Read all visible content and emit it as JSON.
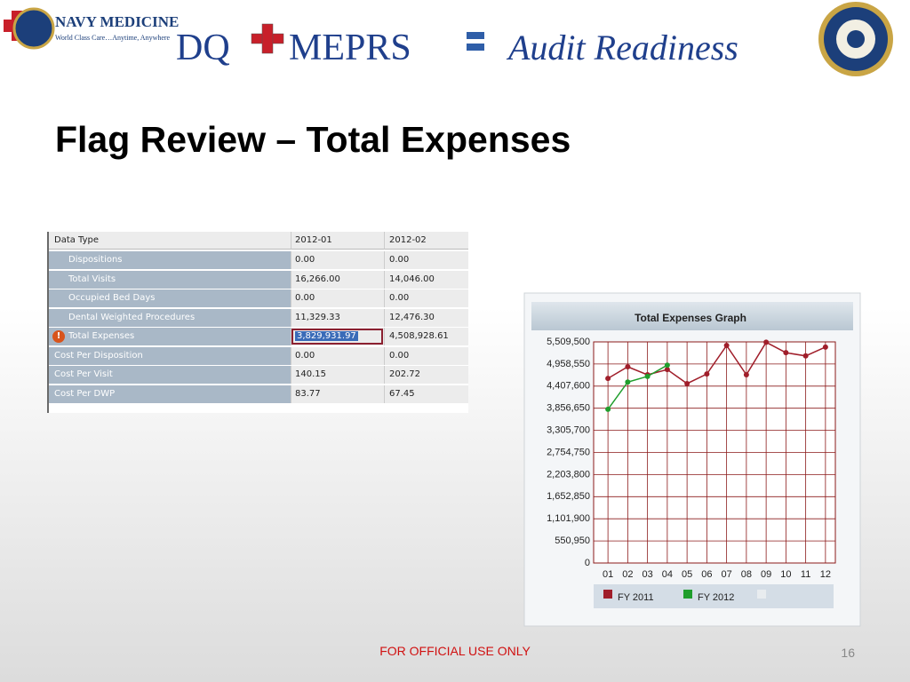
{
  "header": {
    "logo_title": "NAVY MEDICINE",
    "logo_tagline": "World Class Care…Anytime, Anywhere",
    "part1": "DQ",
    "part2": "MEPRS",
    "part3": "Audit Readiness"
  },
  "title": "Flag Review – Total Expenses",
  "table": {
    "columns": [
      "Data Type",
      "2012-01",
      "2012-02"
    ],
    "rows": [
      [
        "Dispositions",
        "0.00",
        "0.00"
      ],
      [
        "Total Visits",
        "16,266.00",
        "14,046.00"
      ],
      [
        "Occupied Bed Days",
        "0.00",
        "0.00"
      ],
      [
        "Dental Weighted Procedures",
        "11,329.33",
        "12,476.30"
      ],
      [
        "Total Expenses",
        "3,829,931.97",
        "4,508,928.61"
      ],
      [
        "Cost Per Disposition",
        "0.00",
        "0.00"
      ],
      [
        "Cost Per Visit",
        "140.15",
        "202.72"
      ],
      [
        "Cost Per DWP",
        "83.77",
        "67.45"
      ]
    ]
  },
  "chart_data": {
    "type": "line",
    "title": "Total Expenses Graph",
    "categories": [
      "01",
      "02",
      "03",
      "04",
      "05",
      "06",
      "07",
      "08",
      "09",
      "10",
      "11",
      "12"
    ],
    "series": [
      {
        "name": "FY 2011",
        "color": "#a01e2a",
        "values": [
          4600000,
          4890000,
          4690000,
          4820000,
          4470000,
          4710000,
          5420000,
          4690000,
          5500000,
          5240000,
          5160000,
          5380000
        ]
      },
      {
        "name": "FY 2012",
        "color": "#1f9e2c",
        "values": [
          3829932,
          4508929,
          4650000,
          4930000,
          null,
          null,
          null,
          null,
          null,
          null,
          null,
          null
        ]
      }
    ],
    "ylim": [
      0,
      5509500
    ],
    "yticks": [
      0,
      {
        "value": 550950,
        "label": "550,950"
      },
      {
        "value": 1101900,
        "label": "1,101,900"
      },
      {
        "value": 1652850,
        "label": "1,652,850"
      },
      {
        "value": 2203800,
        "label": "2,203,800"
      },
      {
        "value": 2754750,
        "label": "2,754,750"
      },
      {
        "value": 3305700,
        "label": "3,305,700"
      },
      {
        "value": 3856650,
        "label": "3,856,650"
      },
      {
        "value": 4407600,
        "label": "4,407,600"
      },
      {
        "value": 4958550,
        "label": "4,958,550"
      },
      {
        "value": 5509500,
        "label": "5,509,500"
      }
    ],
    "grid": true
  },
  "footer": {
    "classification": "FOR OFFICIAL USE ONLY",
    "page": "16"
  }
}
